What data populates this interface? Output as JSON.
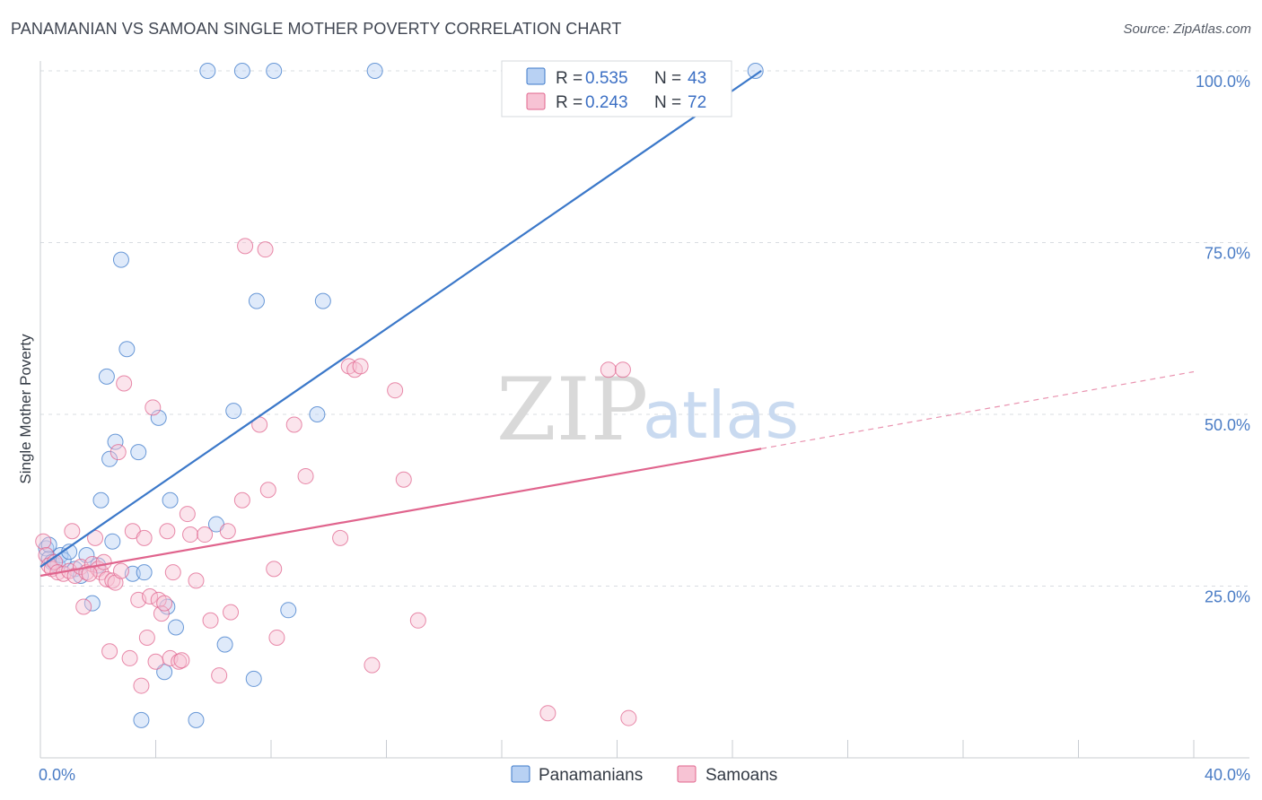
{
  "title": "PANAMANIAN VS SAMOAN SINGLE MOTHER POVERTY CORRELATION CHART",
  "source": "Source: ZipAtlas.com",
  "watermark": {
    "zip": "ZIP",
    "atlas": "atlas"
  },
  "colors": {
    "panamanian": "#3b78c9",
    "panamanian_fill": "#b8d1f3",
    "samoan": "#e0648d",
    "samoan_fill": "#f7c3d4"
  },
  "legend": {
    "rows": [
      {
        "r_label": "R =",
        "r_value": "0.535",
        "n_label": "N =",
        "n_value": "43"
      },
      {
        "r_label": "R =",
        "r_value": "0.243",
        "n_label": "N =",
        "n_value": "72"
      }
    ]
  },
  "chart_data": {
    "type": "scatter",
    "title": "PANAMANIAN VS SAMOAN SINGLE MOTHER POVERTY CORRELATION CHART",
    "xlabel": "",
    "ylabel": "Single Mother Poverty",
    "xlim": [
      0,
      40
    ],
    "ylim": [
      0,
      100
    ],
    "x_tick_labels": [
      "0.0%",
      "40.0%"
    ],
    "y_ticks": [
      25,
      50,
      75,
      100
    ],
    "y_tick_labels": [
      "25.0%",
      "50.0%",
      "75.0%",
      "100.0%"
    ],
    "grid": true,
    "legend_position": "top-center",
    "series": [
      {
        "name": "Panamanians",
        "color": "#3b78c9",
        "points": [
          [
            0.2,
            30.5
          ],
          [
            0.3,
            29.0
          ],
          [
            0.4,
            28.5
          ],
          [
            0.6,
            28.0
          ],
          [
            0.7,
            29.5
          ],
          [
            0.8,
            28.8
          ],
          [
            1.0,
            30.0
          ],
          [
            1.2,
            27.5
          ],
          [
            1.4,
            26.5
          ],
          [
            1.6,
            29.5
          ],
          [
            1.8,
            22.5
          ],
          [
            2.0,
            28.0
          ],
          [
            2.1,
            37.5
          ],
          [
            2.3,
            55.5
          ],
          [
            2.4,
            43.5
          ],
          [
            2.5,
            31.5
          ],
          [
            2.6,
            46.0
          ],
          [
            2.8,
            72.5
          ],
          [
            3.0,
            59.5
          ],
          [
            3.2,
            26.8
          ],
          [
            3.4,
            44.5
          ],
          [
            3.5,
            5.5
          ],
          [
            3.6,
            27.0
          ],
          [
            4.1,
            49.5
          ],
          [
            4.3,
            12.5
          ],
          [
            4.4,
            22.0
          ],
          [
            4.5,
            37.5
          ],
          [
            4.7,
            19.0
          ],
          [
            5.4,
            5.5
          ],
          [
            5.8,
            100
          ],
          [
            6.1,
            34.0
          ],
          [
            6.4,
            16.5
          ],
          [
            6.7,
            50.5
          ],
          [
            7.0,
            100
          ],
          [
            7.4,
            11.5
          ],
          [
            7.5,
            66.5
          ],
          [
            8.1,
            100
          ],
          [
            8.6,
            21.5
          ],
          [
            9.6,
            50.0
          ],
          [
            9.8,
            66.5
          ],
          [
            11.6,
            100
          ],
          [
            24.8,
            100
          ],
          [
            0.3,
            31.0
          ]
        ],
        "trend": {
          "x1": 0,
          "y1": 27.8,
          "x2": 25.0,
          "y2": 100
        }
      },
      {
        "name": "Samoans",
        "color": "#e0648d",
        "points": [
          [
            0.1,
            31.5
          ],
          [
            0.2,
            29.5
          ],
          [
            0.3,
            28.0
          ],
          [
            0.4,
            27.5
          ],
          [
            0.5,
            28.5
          ],
          [
            0.6,
            27.0
          ],
          [
            0.8,
            26.8
          ],
          [
            1.0,
            27.2
          ],
          [
            1.1,
            33.0
          ],
          [
            1.2,
            26.5
          ],
          [
            1.4,
            27.8
          ],
          [
            1.5,
            22.0
          ],
          [
            1.6,
            27.0
          ],
          [
            1.8,
            28.2
          ],
          [
            1.9,
            32.0
          ],
          [
            2.0,
            27.5
          ],
          [
            2.1,
            27.0
          ],
          [
            2.2,
            28.5
          ],
          [
            2.3,
            26.0
          ],
          [
            2.4,
            15.5
          ],
          [
            2.5,
            25.8
          ],
          [
            2.6,
            25.5
          ],
          [
            2.7,
            44.5
          ],
          [
            2.9,
            54.5
          ],
          [
            3.1,
            14.5
          ],
          [
            3.2,
            33.0
          ],
          [
            3.4,
            23.0
          ],
          [
            3.5,
            10.5
          ],
          [
            3.6,
            32.0
          ],
          [
            3.7,
            17.5
          ],
          [
            3.8,
            23.5
          ],
          [
            3.9,
            51.0
          ],
          [
            4.0,
            14.0
          ],
          [
            4.1,
            23.0
          ],
          [
            4.2,
            21.0
          ],
          [
            4.3,
            22.5
          ],
          [
            4.4,
            33.0
          ],
          [
            4.5,
            14.5
          ],
          [
            4.6,
            27.0
          ],
          [
            4.8,
            14.0
          ],
          [
            4.9,
            14.2
          ],
          [
            5.1,
            35.5
          ],
          [
            5.2,
            32.5
          ],
          [
            5.4,
            25.8
          ],
          [
            5.7,
            32.5
          ],
          [
            5.9,
            20.0
          ],
          [
            6.2,
            12.0
          ],
          [
            6.5,
            33.0
          ],
          [
            6.6,
            21.2
          ],
          [
            7.0,
            37.5
          ],
          [
            7.1,
            74.5
          ],
          [
            7.6,
            48.5
          ],
          [
            7.8,
            74.0
          ],
          [
            7.9,
            39.0
          ],
          [
            8.1,
            27.5
          ],
          [
            8.2,
            17.5
          ],
          [
            8.8,
            48.5
          ],
          [
            9.2,
            41.0
          ],
          [
            10.4,
            32.0
          ],
          [
            10.7,
            57.0
          ],
          [
            10.9,
            56.5
          ],
          [
            11.1,
            57.0
          ],
          [
            11.5,
            13.5
          ],
          [
            12.3,
            53.5
          ],
          [
            12.6,
            40.5
          ],
          [
            13.1,
            20.0
          ],
          [
            17.6,
            6.5
          ],
          [
            19.7,
            56.5
          ],
          [
            20.2,
            56.5
          ],
          [
            20.4,
            5.8
          ],
          [
            1.7,
            26.8
          ],
          [
            2.8,
            27.2
          ]
        ],
        "trend": {
          "x1": 0,
          "y1": 26.5,
          "x2": 25.0,
          "y2": 45.0
        },
        "trend_dashed": {
          "x1": 25.0,
          "y1": 45.0,
          "x2": 40.0,
          "y2": 56.2
        }
      }
    ]
  }
}
